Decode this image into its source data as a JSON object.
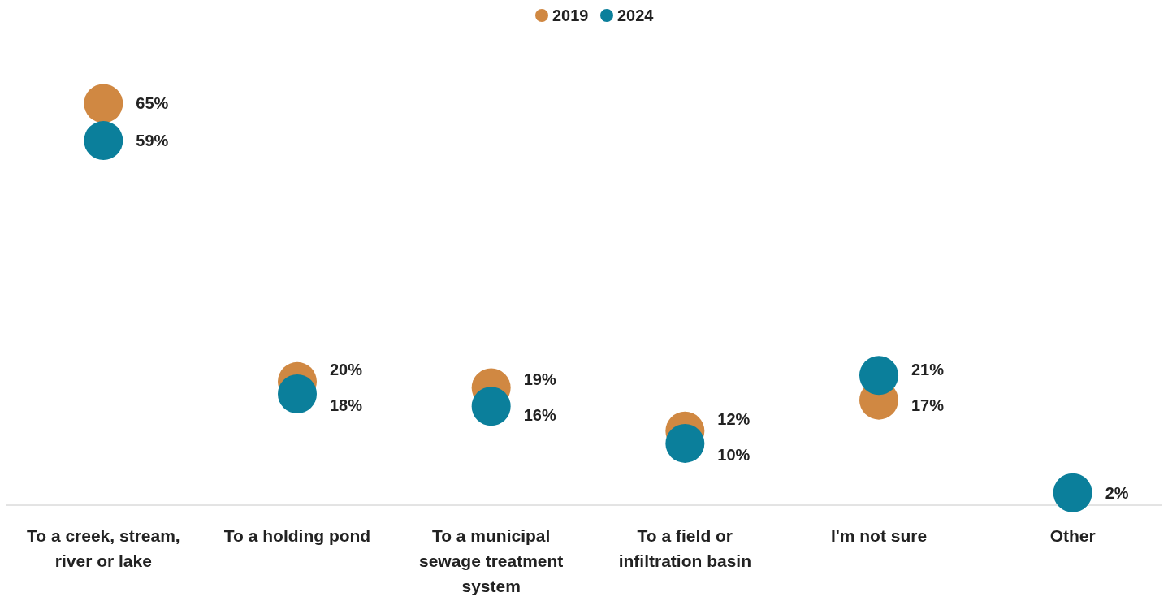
{
  "chart_data": {
    "type": "scatter",
    "categories": [
      "To a creek, stream, river or lake",
      "To a holding pond",
      "To a municipal sewage treatment system",
      "To a field or infiltration basin",
      "I'm not sure",
      "Other"
    ],
    "series": [
      {
        "name": "2019",
        "color": "#d08842",
        "values": [
          65,
          20,
          19,
          12,
          17,
          null
        ],
        "value_labels": [
          "65%",
          "20%",
          "19%",
          "12%",
          "17%",
          null
        ]
      },
      {
        "name": "2024",
        "color": "#0b7f9b",
        "values": [
          59,
          18,
          16,
          10,
          21,
          2
        ],
        "value_labels": [
          "59%",
          "18%",
          "16%",
          "10%",
          "21%",
          "2%"
        ]
      }
    ],
    "legend": "top",
    "marker": "circle"
  }
}
